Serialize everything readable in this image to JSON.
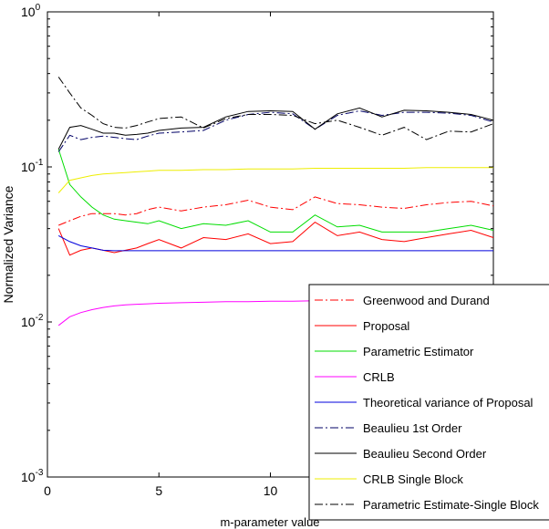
{
  "chart_data": {
    "type": "line",
    "title": "",
    "xlabel": "m-parameter value",
    "ylabel": "Normalized Variance",
    "xlim": [
      0,
      20
    ],
    "ylim": [
      0.001,
      1
    ],
    "yscale": "log",
    "x_ticks": [
      {
        "value": 0,
        "label": "0"
      },
      {
        "value": 5,
        "label": "5"
      },
      {
        "value": 10,
        "label": "10"
      }
    ],
    "y_ticks": [
      {
        "value": 0.001,
        "base": "10",
        "exp": "-3"
      },
      {
        "value": 0.01,
        "base": "10",
        "exp": "-2"
      },
      {
        "value": 0.1,
        "base": "10",
        "exp": "-1"
      },
      {
        "value": 1,
        "base": "10",
        "exp": "0"
      }
    ],
    "grid": false,
    "legend_position": "bottom-right",
    "x": [
      0.5,
      1,
      1.5,
      2,
      2.5,
      3,
      3.5,
      4,
      4.5,
      5,
      6,
      7,
      8,
      9,
      10,
      11,
      12,
      13,
      14,
      15,
      16,
      17,
      18,
      19,
      20
    ],
    "series": [
      {
        "name": "Greenwood and Durand",
        "color": "#ff0000",
        "dash": "dashdot",
        "values": [
          0.042,
          0.045,
          0.048,
          0.05,
          0.05,
          0.05,
          0.049,
          0.05,
          0.053,
          0.055,
          0.052,
          0.055,
          0.057,
          0.061,
          0.055,
          0.053,
          0.064,
          0.058,
          0.057,
          0.055,
          0.054,
          0.057,
          0.059,
          0.06,
          0.056
        ]
      },
      {
        "name": "Proposal",
        "color": "#ff0000",
        "dash": "solid",
        "values": [
          0.04,
          0.027,
          0.029,
          0.03,
          0.029,
          0.028,
          0.029,
          0.03,
          0.032,
          0.034,
          0.03,
          0.035,
          0.034,
          0.037,
          0.032,
          0.033,
          0.044,
          0.036,
          0.038,
          0.034,
          0.033,
          0.035,
          0.037,
          0.039,
          0.035
        ]
      },
      {
        "name": "Parametric Estimator",
        "color": "#00dd00",
        "dash": "solid",
        "values": [
          0.13,
          0.077,
          0.064,
          0.055,
          0.049,
          0.046,
          0.045,
          0.044,
          0.043,
          0.045,
          0.04,
          0.043,
          0.042,
          0.045,
          0.038,
          0.038,
          0.049,
          0.041,
          0.042,
          0.038,
          0.038,
          0.038,
          0.04,
          0.042,
          0.039
        ]
      },
      {
        "name": "CRLB",
        "color": "#ff00ff",
        "dash": "solid",
        "values": [
          0.0095,
          0.0108,
          0.0115,
          0.012,
          0.0124,
          0.0127,
          0.0129,
          0.013,
          0.0131,
          0.0132,
          0.0133,
          0.0134,
          0.0135,
          0.0135,
          0.0136,
          0.0136,
          0.0137,
          0.0137,
          0.0137,
          0.0138,
          0.0138,
          0.0138,
          0.0138,
          0.0139,
          0.0139
        ]
      },
      {
        "name": "Theoretical variance of Proposal",
        "color": "#0000dd",
        "dash": "solid",
        "values": [
          0.036,
          0.033,
          0.031,
          0.03,
          0.029,
          0.0288,
          0.0288,
          0.0288,
          0.0288,
          0.0288,
          0.0288,
          0.0288,
          0.0288,
          0.0288,
          0.0288,
          0.0288,
          0.0288,
          0.0288,
          0.0288,
          0.0288,
          0.0288,
          0.0288,
          0.0288,
          0.0288,
          0.0288
        ]
      },
      {
        "name": "Beaulieu 1st Order",
        "color": "#000066",
        "dash": "dashdot",
        "values": [
          0.125,
          0.16,
          0.15,
          0.155,
          0.158,
          0.155,
          0.152,
          0.15,
          0.158,
          0.165,
          0.168,
          0.172,
          0.2,
          0.218,
          0.225,
          0.22,
          0.175,
          0.215,
          0.23,
          0.215,
          0.225,
          0.225,
          0.222,
          0.215,
          0.195
        ]
      },
      {
        "name": "Beaulieu Second Order",
        "color": "#000000",
        "dash": "solid",
        "values": [
          0.13,
          0.18,
          0.185,
          0.175,
          0.165,
          0.165,
          0.16,
          0.162,
          0.165,
          0.172,
          0.178,
          0.18,
          0.21,
          0.228,
          0.23,
          0.228,
          0.175,
          0.22,
          0.24,
          0.21,
          0.232,
          0.23,
          0.225,
          0.218,
          0.2
        ]
      },
      {
        "name": "CRLB Single Block",
        "color": "#eeee00",
        "dash": "solid",
        "values": [
          0.068,
          0.082,
          0.085,
          0.088,
          0.09,
          0.091,
          0.092,
          0.093,
          0.094,
          0.095,
          0.095,
          0.096,
          0.096,
          0.097,
          0.097,
          0.097,
          0.098,
          0.098,
          0.098,
          0.098,
          0.098,
          0.099,
          0.099,
          0.099,
          0.099
        ]
      },
      {
        "name": "Parametric Estimate-Single Block",
        "color": "#000000",
        "dash": "dashdot",
        "values": [
          0.38,
          0.3,
          0.24,
          0.215,
          0.19,
          0.18,
          0.178,
          0.185,
          0.195,
          0.205,
          0.21,
          0.178,
          0.205,
          0.218,
          0.218,
          0.215,
          0.19,
          0.2,
          0.18,
          0.16,
          0.18,
          0.15,
          0.17,
          0.168,
          0.19
        ]
      }
    ]
  }
}
